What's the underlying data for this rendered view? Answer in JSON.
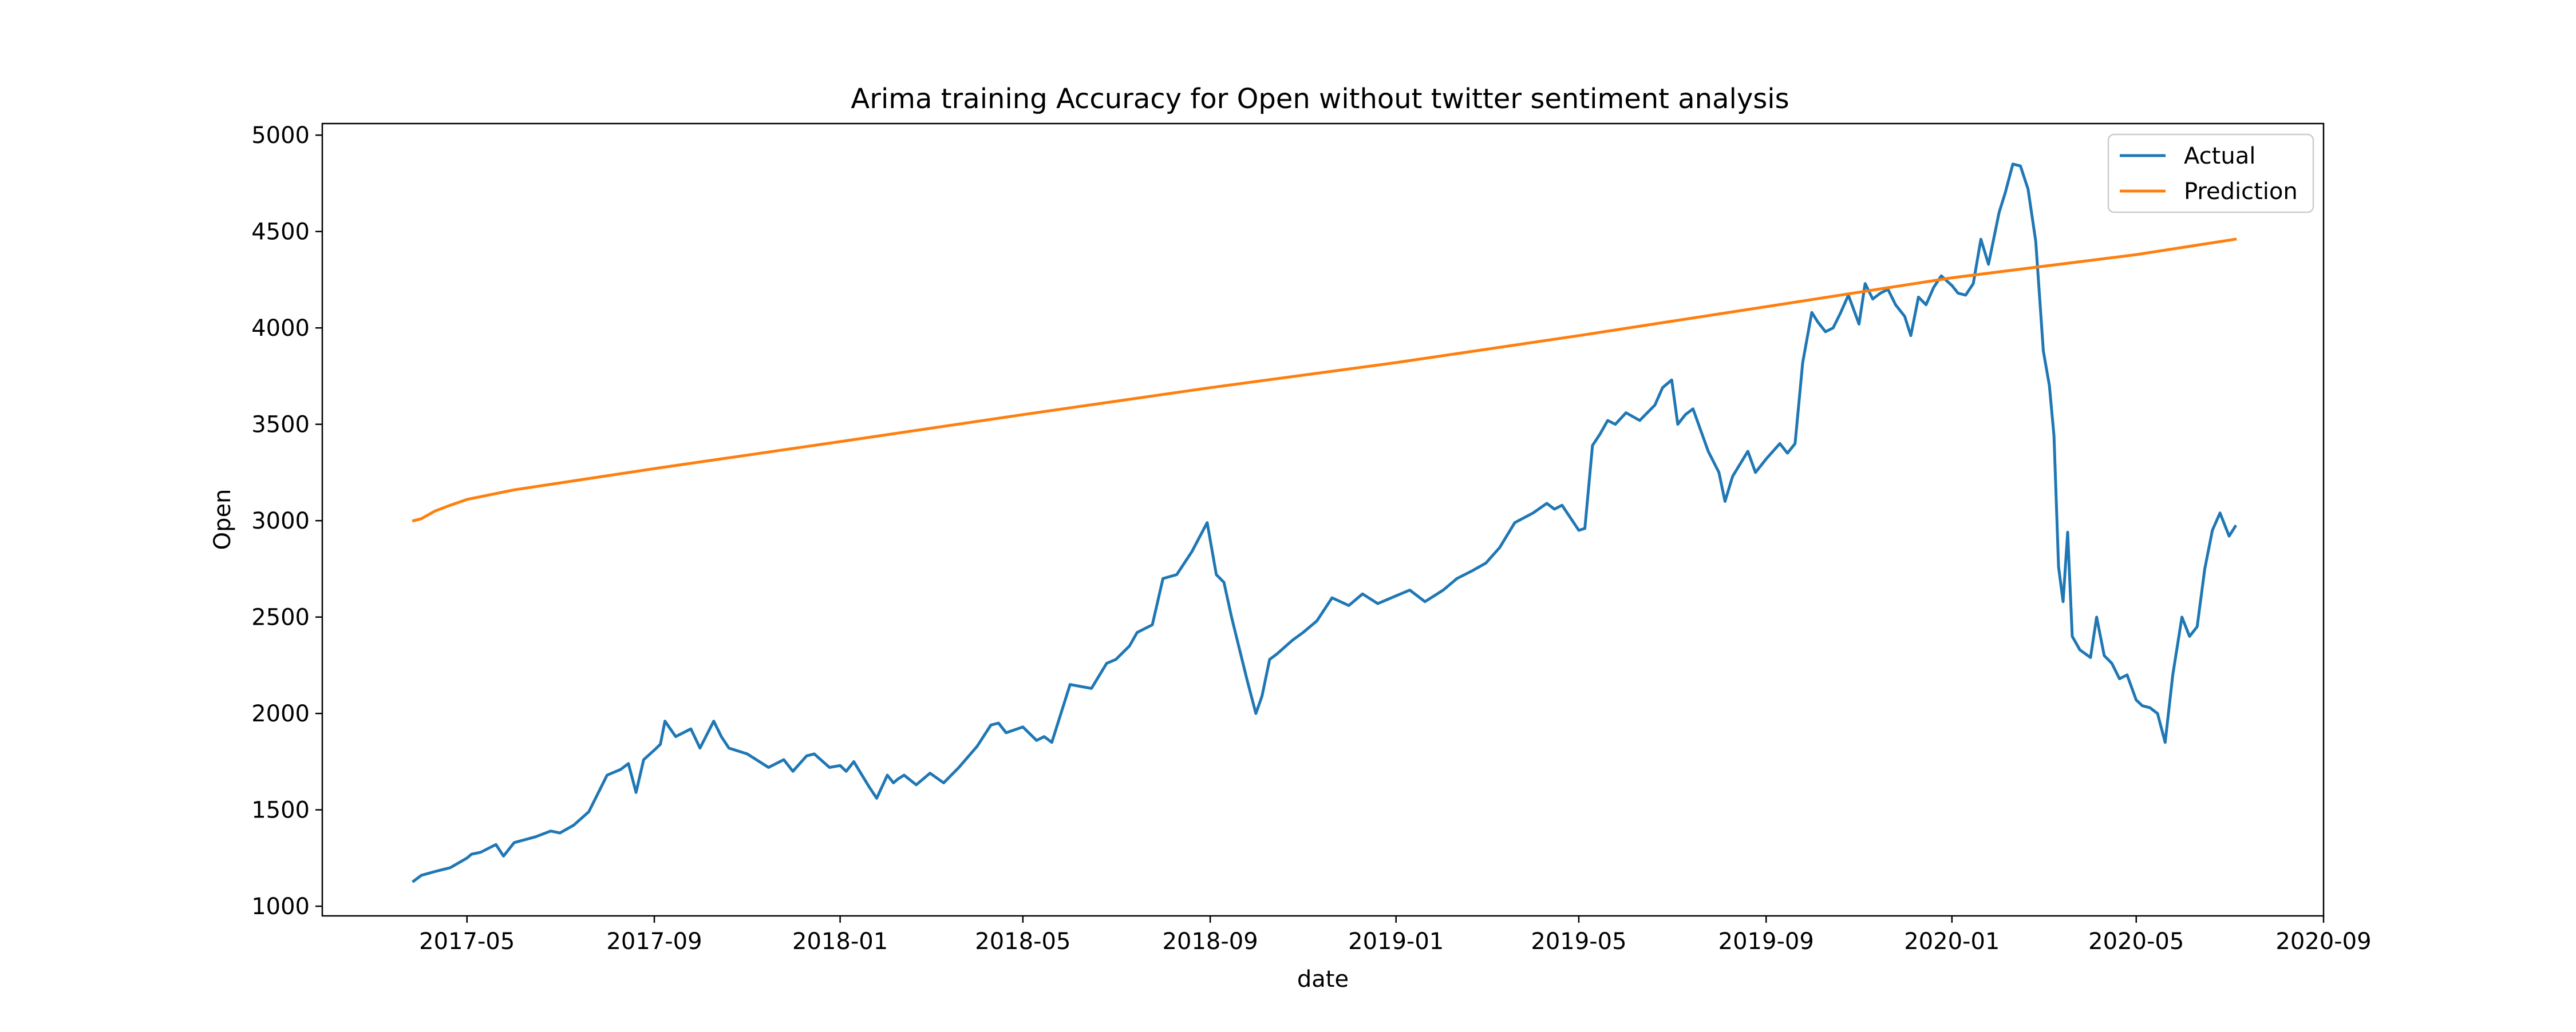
{
  "chart_data": {
    "type": "line",
    "title": "Arima training Accuracy for Open without twitter sentiment analysis",
    "xlabel": "date",
    "ylabel": "Open",
    "xlim": [
      "2017-01-26",
      "2020-09-01"
    ],
    "ylim": [
      950,
      5060
    ],
    "x_ticks": [
      "2017-05",
      "2017-09",
      "2018-01",
      "2018-05",
      "2018-09",
      "2019-01",
      "2019-05",
      "2019-09",
      "2020-01",
      "2020-05",
      "2020-09"
    ],
    "y_ticks": [
      1000,
      1500,
      2000,
      2500,
      3000,
      3500,
      4000,
      4500,
      5000
    ],
    "legend_position": "top-right",
    "grid": false,
    "series": [
      {
        "name": "Actual",
        "color": "#1f77b4",
        "x": [
          "2017-03-27",
          "2017-04-01",
          "2017-04-10",
          "2017-04-20",
          "2017-05-01",
          "2017-05-04",
          "2017-05-10",
          "2017-05-20",
          "2017-05-25",
          "2017-06-01",
          "2017-06-15",
          "2017-06-25",
          "2017-07-01",
          "2017-07-10",
          "2017-07-20",
          "2017-08-01",
          "2017-08-10",
          "2017-08-15",
          "2017-08-20",
          "2017-08-25",
          "2017-09-01",
          "2017-09-05",
          "2017-09-08",
          "2017-09-15",
          "2017-09-25",
          "2017-10-01",
          "2017-10-10",
          "2017-10-15",
          "2017-10-20",
          "2017-11-01",
          "2017-11-15",
          "2017-11-25",
          "2017-12-01",
          "2017-12-10",
          "2017-12-15",
          "2017-12-25",
          "2018-01-01",
          "2018-01-05",
          "2018-01-10",
          "2018-01-20",
          "2018-01-25",
          "2018-02-01",
          "2018-02-05",
          "2018-02-08",
          "2018-02-12",
          "2018-02-20",
          "2018-03-01",
          "2018-03-10",
          "2018-03-20",
          "2018-04-01",
          "2018-04-10",
          "2018-04-15",
          "2018-04-20",
          "2018-05-01",
          "2018-05-10",
          "2018-05-15",
          "2018-05-20",
          "2018-06-01",
          "2018-06-15",
          "2018-06-25",
          "2018-07-01",
          "2018-07-10",
          "2018-07-15",
          "2018-07-25",
          "2018-08-01",
          "2018-08-10",
          "2018-08-20",
          "2018-08-30",
          "2018-09-05",
          "2018-09-10",
          "2018-09-15",
          "2018-09-20",
          "2018-09-25",
          "2018-10-01",
          "2018-10-05",
          "2018-10-10",
          "2018-10-15",
          "2018-10-25",
          "2018-11-01",
          "2018-11-10",
          "2018-11-20",
          "2018-12-01",
          "2018-12-10",
          "2018-12-20",
          "2019-01-01",
          "2019-01-10",
          "2019-01-20",
          "2019-02-01",
          "2019-02-10",
          "2019-02-20",
          "2019-03-01",
          "2019-03-10",
          "2019-03-20",
          "2019-04-01",
          "2019-04-10",
          "2019-04-15",
          "2019-04-20",
          "2019-05-01",
          "2019-05-05",
          "2019-05-10",
          "2019-05-15",
          "2019-05-20",
          "2019-05-25",
          "2019-06-01",
          "2019-06-10",
          "2019-06-20",
          "2019-06-25",
          "2019-07-01",
          "2019-07-05",
          "2019-07-10",
          "2019-07-15",
          "2019-07-25",
          "2019-08-01",
          "2019-08-05",
          "2019-08-10",
          "2019-08-20",
          "2019-08-25",
          "2019-09-01",
          "2019-09-10",
          "2019-09-15",
          "2019-09-20",
          "2019-09-25",
          "2019-10-01",
          "2019-10-05",
          "2019-10-10",
          "2019-10-15",
          "2019-10-20",
          "2019-10-25",
          "2019-11-01",
          "2019-11-05",
          "2019-11-10",
          "2019-11-15",
          "2019-11-20",
          "2019-11-25",
          "2019-12-01",
          "2019-12-05",
          "2019-12-10",
          "2019-12-15",
          "2019-12-20",
          "2019-12-25",
          "2020-01-01",
          "2020-01-05",
          "2020-01-10",
          "2020-01-15",
          "2020-01-20",
          "2020-01-25",
          "2020-02-01",
          "2020-02-05",
          "2020-02-10",
          "2020-02-15",
          "2020-02-20",
          "2020-02-25",
          "2020-03-01",
          "2020-03-05",
          "2020-03-08",
          "2020-03-11",
          "2020-03-14",
          "2020-03-17",
          "2020-03-20",
          "2020-03-25",
          "2020-04-01",
          "2020-04-05",
          "2020-04-10",
          "2020-04-15",
          "2020-04-20",
          "2020-04-25",
          "2020-05-01",
          "2020-05-05",
          "2020-05-10",
          "2020-05-15",
          "2020-05-20",
          "2020-05-25",
          "2020-05-31",
          "2020-06-05",
          "2020-06-10",
          "2020-06-15",
          "2020-06-20",
          "2020-06-25",
          "2020-07-01",
          "2020-07-05"
        ],
        "values": [
          1130,
          1160,
          1180,
          1200,
          1250,
          1270,
          1280,
          1320,
          1260,
          1330,
          1360,
          1390,
          1380,
          1420,
          1490,
          1680,
          1710,
          1740,
          1590,
          1760,
          1810,
          1840,
          1960,
          1880,
          1920,
          1820,
          1960,
          1880,
          1820,
          1790,
          1720,
          1760,
          1700,
          1780,
          1790,
          1720,
          1730,
          1700,
          1750,
          1620,
          1560,
          1680,
          1640,
          1660,
          1680,
          1630,
          1690,
          1640,
          1720,
          1830,
          1940,
          1950,
          1900,
          1930,
          1860,
          1880,
          1850,
          2150,
          2130,
          2260,
          2280,
          2350,
          2420,
          2460,
          2700,
          2720,
          2840,
          2990,
          2720,
          2680,
          2500,
          2340,
          2180,
          2000,
          2090,
          2280,
          2310,
          2380,
          2420,
          2480,
          2600,
          2560,
          2620,
          2570,
          2610,
          2640,
          2580,
          2640,
          2700,
          2740,
          2780,
          2860,
          2990,
          3040,
          3090,
          3060,
          3080,
          2950,
          2960,
          3390,
          3450,
          3520,
          3500,
          3560,
          3520,
          3600,
          3690,
          3730,
          3500,
          3550,
          3580,
          3360,
          3250,
          3100,
          3230,
          3360,
          3250,
          3320,
          3400,
          3350,
          3400,
          3820,
          4080,
          4030,
          3980,
          4000,
          4080,
          4170,
          4020,
          4230,
          4150,
          4180,
          4200,
          4120,
          4060,
          3960,
          4160,
          4120,
          4210,
          4270,
          4220,
          4180,
          4170,
          4230,
          4460,
          4330,
          4600,
          4700,
          4850,
          4840,
          4720,
          4450,
          3880,
          3700,
          3440,
          2760,
          2580,
          2940,
          2400,
          2330,
          2290,
          2500,
          2300,
          2260,
          2180,
          2200,
          2070,
          2040,
          2030,
          2000,
          1850,
          2200,
          2500,
          2400,
          2450,
          2750,
          2950,
          3040,
          2920,
          2970
        ]
      },
      {
        "name": "Prediction",
        "color": "#ff7f0e",
        "x": [
          "2017-03-27",
          "2017-04-01",
          "2017-04-10",
          "2017-04-20",
          "2017-05-01",
          "2017-06-01",
          "2017-09-01",
          "2018-01-01",
          "2018-05-01",
          "2018-09-01",
          "2019-01-01",
          "2019-05-01",
          "2019-09-01",
          "2020-01-01",
          "2020-05-01",
          "2020-07-05"
        ],
        "values": [
          3000,
          3010,
          3050,
          3080,
          3110,
          3160,
          3270,
          3410,
          3550,
          3690,
          3820,
          3960,
          4110,
          4260,
          4380,
          4460
        ]
      }
    ]
  }
}
